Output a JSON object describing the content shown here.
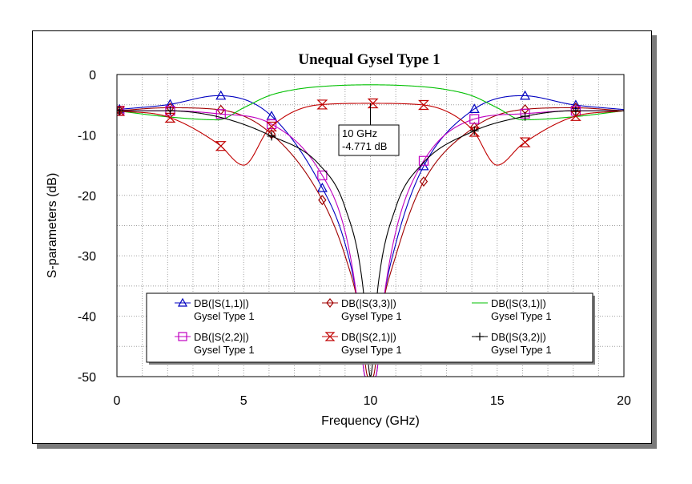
{
  "chart_data": {
    "type": "line",
    "title": "Unequal Gysel Type 1",
    "xlabel": "Frequency (GHz)",
    "ylabel": "S-parameters (dB)",
    "xlim": [
      0,
      20
    ],
    "ylim": [
      -50,
      0
    ],
    "xticks": [
      "0",
      "5",
      "10",
      "15",
      "20"
    ],
    "yticks": [
      "0",
      "-10",
      "-20",
      "-30",
      "-40",
      "-50"
    ],
    "grid": true,
    "legend_position": "lower-center",
    "series": [
      {
        "name": "DB(|S(1,1)|)",
        "sub": "Gysel Type 1",
        "color": "#0000c0",
        "marker": "triangle",
        "x": [
          0,
          2,
          4,
          6,
          8,
          9,
          9.5,
          9.8,
          10.2,
          10.5,
          11,
          12,
          14,
          16,
          18,
          20
        ],
        "y": [
          -5.8,
          -5.0,
          -3.5,
          -6.5,
          -18,
          -28,
          -38,
          -50,
          -50,
          -38,
          -28,
          -16,
          -6.0,
          -3.5,
          -5.0,
          -5.8
        ],
        "markers_x": [
          0.1,
          2.1,
          4.1,
          6.1,
          8.1,
          12.1,
          14.1,
          16.1,
          18.1
        ]
      },
      {
        "name": "DB(|S(3,3)|)",
        "sub": "Gysel Type 1",
        "color": "#a00000",
        "marker": "diamond",
        "x": [
          0,
          2,
          4,
          6,
          8,
          9,
          9.6,
          9.9,
          10.1,
          10.4,
          11,
          12,
          14,
          16,
          18,
          20
        ],
        "y": [
          -6.0,
          -5.5,
          -5.8,
          -9.5,
          -20,
          -30,
          -40,
          -50,
          -50,
          -40,
          -30,
          -18.5,
          -9.0,
          -5.8,
          -5.5,
          -6.0
        ],
        "markers_x": [
          0.1,
          2.1,
          4.1,
          6.1,
          8.1,
          12.1,
          14.1,
          16.1,
          18.1
        ]
      },
      {
        "name": "DB(|S(3,1)|)",
        "sub": "Gysel Type 1",
        "color": "#00c000",
        "marker": "none",
        "x": [
          0,
          2,
          4,
          5,
          6,
          7,
          8,
          10,
          12,
          13,
          14,
          15,
          16,
          18,
          20
        ],
        "y": [
          -6.0,
          -7.0,
          -7.5,
          -5.5,
          -3.5,
          -2.5,
          -2.0,
          -1.7,
          -2.0,
          -2.5,
          -3.5,
          -5.5,
          -7.5,
          -7.0,
          -6.0
        ],
        "markers_x": []
      },
      {
        "name": "DB(|S(2,2)|)",
        "sub": "Gysel Type 1",
        "color": "#c000c0",
        "marker": "square",
        "x": [
          0,
          2,
          4,
          6,
          8,
          9,
          9.5,
          9.8,
          10.2,
          10.5,
          11,
          12,
          14,
          16,
          18,
          20
        ],
        "y": [
          -6.0,
          -6.0,
          -6.5,
          -8.0,
          -16,
          -26,
          -38,
          -50,
          -50,
          -38,
          -26,
          -15,
          -7.5,
          -6.5,
          -6.0,
          -6.0
        ],
        "markers_x": [
          0.1,
          2.1,
          4.1,
          6.1,
          8.1,
          12.1,
          14.1,
          16.1,
          18.1
        ]
      },
      {
        "name": "DB(|S(2,1)|)",
        "sub": "Gysel Type 1",
        "color": "#c00000",
        "marker": "hourglass",
        "x": [
          0,
          2,
          4,
          5,
          6,
          8,
          10,
          12,
          14,
          15,
          16,
          18,
          20
        ],
        "y": [
          -6.0,
          -7.0,
          -11.5,
          -15,
          -9.0,
          -5.0,
          -4.771,
          -5.0,
          -9.0,
          -15,
          -11.5,
          -7.0,
          -6.0
        ],
        "markers_x": [
          0.1,
          2.1,
          4.1,
          6.1,
          8.1,
          10.1,
          12.1,
          14.1,
          16.1,
          18.1
        ]
      },
      {
        "name": "DB(|S(3,2)|)",
        "sub": "Gysel Type 1",
        "color": "#000000",
        "marker": "plus",
        "x": [
          0,
          2,
          4,
          6,
          8,
          9,
          9.7,
          10,
          10.3,
          11,
          12,
          14,
          16,
          18,
          20
        ],
        "y": [
          -6.0,
          -6.0,
          -7.0,
          -10,
          -15,
          -22,
          -35,
          -50,
          -35,
          -22,
          -15,
          -9.5,
          -7.0,
          -6.0,
          -6.0
        ],
        "markers_x": [
          0.1,
          2.1,
          6.1,
          14.1,
          16.1,
          18.1
        ]
      }
    ],
    "annotation": {
      "x": 10,
      "y": -4.771,
      "line1": "10 GHz",
      "line2": "-4.771 dB"
    }
  }
}
